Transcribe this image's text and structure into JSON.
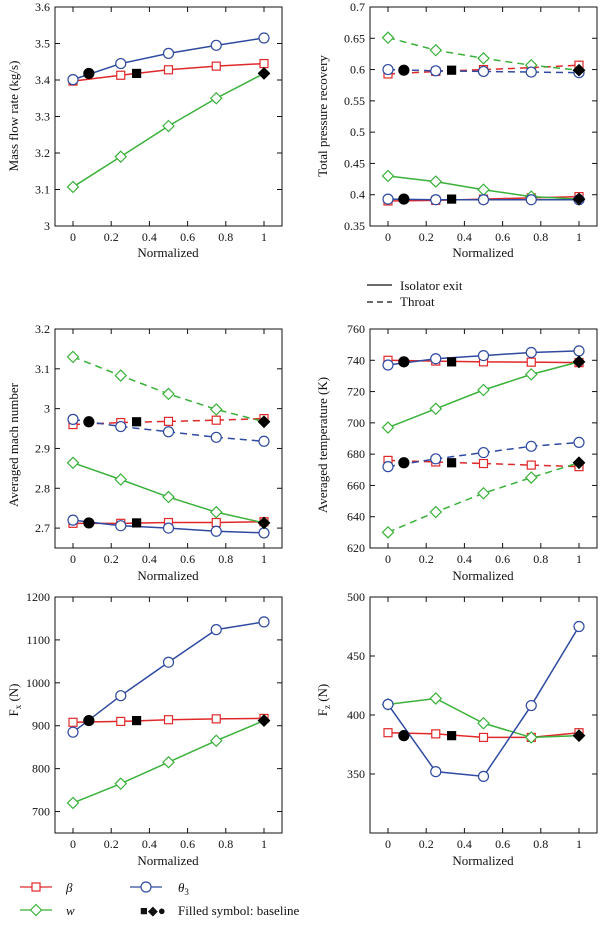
{
  "colors": {
    "beta": "#e0282a",
    "w": "#3ab13a",
    "theta": "#2f4aa0",
    "axis": "#111111"
  },
  "chart_data": [
    {
      "id": "mass",
      "type": "line",
      "xlabel": "Normalized",
      "ylabel": "Mass flow rate (kg/s)",
      "xlim": [
        0,
        1
      ],
      "ylim": [
        3.0,
        3.6
      ],
      "xticks": [
        0,
        0.2,
        0.4,
        0.6,
        0.8,
        1
      ],
      "xtick_labels": [
        "0",
        "0.2",
        "0.4",
        "0.6",
        "0.8",
        "1"
      ],
      "yticks": [
        3,
        3.1,
        3.2,
        3.3,
        3.4,
        3.5,
        3.6
      ],
      "ytick_labels": [
        "3",
        "3.1",
        "3.2",
        "3.3",
        "3.4",
        "3.5",
        "3.6"
      ],
      "series": [
        {
          "param": "beta",
          "style": "solid",
          "x": [
            0,
            0.25,
            0.5,
            0.75,
            1
          ],
          "y": [
            3.397,
            3.413,
            3.428,
            3.438,
            3.445
          ],
          "baseline": [
            0.333,
            3.418
          ]
        },
        {
          "param": "w",
          "style": "solid",
          "x": [
            0,
            0.25,
            0.5,
            0.75,
            1
          ],
          "y": [
            3.107,
            3.19,
            3.274,
            3.35,
            3.418
          ],
          "baseline": [
            1,
            3.418
          ]
        },
        {
          "param": "theta",
          "style": "solid",
          "x": [
            0,
            0.25,
            0.5,
            0.75,
            1
          ],
          "y": [
            3.401,
            3.445,
            3.473,
            3.495,
            3.515
          ],
          "baseline": [
            0.083,
            3.418
          ]
        }
      ]
    },
    {
      "id": "pressure",
      "type": "line",
      "xlabel": "Normalized",
      "ylabel": "Total pressure recovery",
      "xlim": [
        0,
        1
      ],
      "ylim": [
        0.35,
        0.7
      ],
      "xticks": [
        0,
        0.2,
        0.4,
        0.6,
        0.8,
        1
      ],
      "xtick_labels": [
        "0",
        "0.2",
        "0.4",
        "0.6",
        "0.8",
        "1"
      ],
      "yticks": [
        0.35,
        0.4,
        0.45,
        0.5,
        0.55,
        0.6,
        0.65,
        0.7
      ],
      "ytick_labels": [
        "0.35",
        "0.4",
        "0.45",
        "0.5",
        "0.55",
        "0.6",
        "0.65",
        "0.7"
      ],
      "series": [
        {
          "param": "beta",
          "style": "solid",
          "x": [
            0,
            0.25,
            0.5,
            0.75,
            1
          ],
          "y": [
            0.39,
            0.391,
            0.393,
            0.395,
            0.397
          ],
          "baseline": [
            0.333,
            0.393
          ]
        },
        {
          "param": "w",
          "style": "solid",
          "x": [
            0,
            0.25,
            0.5,
            0.75,
            1
          ],
          "y": [
            0.43,
            0.421,
            0.408,
            0.397,
            0.393
          ],
          "baseline": [
            1,
            0.393
          ]
        },
        {
          "param": "theta",
          "style": "solid",
          "x": [
            0,
            0.25,
            0.5,
            0.75,
            1
          ],
          "y": [
            0.393,
            0.392,
            0.392,
            0.392,
            0.392
          ],
          "baseline": [
            0.083,
            0.393
          ]
        },
        {
          "param": "beta",
          "style": "dashed",
          "x": [
            0,
            0.25,
            0.5,
            0.75,
            1
          ],
          "y": [
            0.593,
            0.597,
            0.6,
            0.603,
            0.607
          ],
          "baseline": [
            0.333,
            0.599
          ]
        },
        {
          "param": "w",
          "style": "dashed",
          "x": [
            0,
            0.25,
            0.5,
            0.75,
            1
          ],
          "y": [
            0.651,
            0.631,
            0.618,
            0.607,
            0.599
          ],
          "baseline": [
            1,
            0.599
          ]
        },
        {
          "param": "theta",
          "style": "dashed",
          "x": [
            0,
            0.25,
            0.5,
            0.75,
            1
          ],
          "y": [
            0.6,
            0.598,
            0.597,
            0.596,
            0.595
          ],
          "baseline": [
            0.083,
            0.599
          ]
        }
      ]
    },
    {
      "id": "mach",
      "type": "line",
      "xlabel": "Normalized",
      "ylabel": "Averaged mach number",
      "xlim": [
        0,
        1
      ],
      "ylim": [
        2.65,
        3.2
      ],
      "xticks": [
        0,
        0.2,
        0.4,
        0.6,
        0.8,
        1
      ],
      "xtick_labels": [
        "0",
        "0.2",
        "0.4",
        "0.6",
        "0.8",
        "1"
      ],
      "yticks": [
        2.7,
        2.8,
        2.9,
        3.0,
        3.1,
        3.2
      ],
      "ytick_labels": [
        "2.7",
        "2.8",
        "2.9",
        "3",
        "3.1",
        "3.2"
      ],
      "series": [
        {
          "param": "beta",
          "style": "solid",
          "x": [
            0,
            0.25,
            0.5,
            0.75,
            1
          ],
          "y": [
            2.712,
            2.712,
            2.714,
            2.714,
            2.716
          ],
          "baseline": [
            0.333,
            2.713
          ]
        },
        {
          "param": "w",
          "style": "solid",
          "x": [
            0,
            0.25,
            0.5,
            0.75,
            1
          ],
          "y": [
            2.864,
            2.822,
            2.778,
            2.74,
            2.713
          ],
          "baseline": [
            1,
            2.713
          ]
        },
        {
          "param": "theta",
          "style": "solid",
          "x": [
            0,
            0.25,
            0.5,
            0.75,
            1
          ],
          "y": [
            2.72,
            2.706,
            2.7,
            2.692,
            2.688
          ],
          "baseline": [
            0.083,
            2.713
          ]
        },
        {
          "param": "beta",
          "style": "dashed",
          "x": [
            0,
            0.25,
            0.5,
            0.75,
            1
          ],
          "y": [
            2.96,
            2.965,
            2.968,
            2.971,
            2.975
          ],
          "baseline": [
            0.333,
            2.967
          ]
        },
        {
          "param": "w",
          "style": "dashed",
          "x": [
            0,
            0.25,
            0.5,
            0.75,
            1
          ],
          "y": [
            3.13,
            3.083,
            3.037,
            2.998,
            2.967
          ],
          "baseline": [
            1,
            2.967
          ]
        },
        {
          "param": "theta",
          "style": "dashed",
          "x": [
            0,
            0.25,
            0.5,
            0.75,
            1
          ],
          "y": [
            2.973,
            2.955,
            2.942,
            2.928,
            2.918
          ],
          "baseline": [
            0.083,
            2.967
          ]
        }
      ]
    },
    {
      "id": "temperature",
      "type": "line",
      "xlabel": "Normalized",
      "ylabel": "Averaged temperature (K)",
      "xlim": [
        0,
        1
      ],
      "ylim": [
        620,
        760
      ],
      "xticks": [
        0,
        0.2,
        0.4,
        0.6,
        0.8,
        1
      ],
      "xtick_labels": [
        "0",
        "0.2",
        "0.4",
        "0.6",
        "0.8",
        "1"
      ],
      "yticks": [
        620,
        640,
        660,
        680,
        700,
        720,
        740,
        760
      ],
      "ytick_labels": [
        "620",
        "640",
        "660",
        "680",
        "700",
        "720",
        "740",
        "760"
      ],
      "series": [
        {
          "param": "beta",
          "style": "solid",
          "x": [
            0,
            0.25,
            0.5,
            0.75,
            1
          ],
          "y": [
            740,
            739.5,
            739,
            738.8,
            738.5
          ],
          "baseline": [
            0.333,
            739
          ]
        },
        {
          "param": "w",
          "style": "solid",
          "x": [
            0,
            0.25,
            0.5,
            0.75,
            1
          ],
          "y": [
            697,
            709,
            721,
            731,
            739
          ],
          "baseline": [
            1,
            739
          ]
        },
        {
          "param": "theta",
          "style": "solid",
          "x": [
            0,
            0.25,
            0.5,
            0.75,
            1
          ],
          "y": [
            737,
            741,
            743,
            745,
            746
          ],
          "baseline": [
            0.083,
            739
          ]
        },
        {
          "param": "beta",
          "style": "dashed",
          "x": [
            0,
            0.25,
            0.5,
            0.75,
            1
          ],
          "y": [
            676,
            675,
            674,
            673,
            672
          ],
          "baseline": [
            0.333,
            674.5
          ]
        },
        {
          "param": "w",
          "style": "dashed",
          "x": [
            0,
            0.25,
            0.5,
            0.75,
            1
          ],
          "y": [
            630,
            643,
            655,
            665,
            674.5
          ],
          "baseline": [
            1,
            674.5
          ]
        },
        {
          "param": "theta",
          "style": "dashed",
          "x": [
            0,
            0.25,
            0.5,
            0.75,
            1
          ],
          "y": [
            672,
            677,
            681,
            685,
            687.5
          ],
          "baseline": [
            0.083,
            674.5
          ]
        }
      ]
    },
    {
      "id": "fx",
      "type": "line",
      "xlabel": "Normalized",
      "ylabel": "Fx (N)",
      "ylabel_main": "F",
      "ylabel_sub": "x",
      "ylabel_tail": " (N)",
      "xlim": [
        0,
        1
      ],
      "ylim": [
        650,
        1200
      ],
      "xticks": [
        0,
        0.2,
        0.4,
        0.6,
        0.8,
        1
      ],
      "xtick_labels": [
        "0",
        "0.2",
        "0.4",
        "0.6",
        "0.8",
        "1"
      ],
      "yticks": [
        700,
        800,
        900,
        1000,
        1100,
        1200
      ],
      "ytick_labels": [
        "700",
        "800",
        "900",
        "1000",
        "1100",
        "1200"
      ],
      "series": [
        {
          "param": "beta",
          "style": "solid",
          "x": [
            0,
            0.25,
            0.5,
            0.75,
            1
          ],
          "y": [
            908,
            910,
            914,
            916,
            917
          ],
          "baseline": [
            0.333,
            912
          ]
        },
        {
          "param": "w",
          "style": "solid",
          "x": [
            0,
            0.25,
            0.5,
            0.75,
            1
          ],
          "y": [
            720,
            765,
            815,
            865,
            912
          ],
          "baseline": [
            1,
            912
          ]
        },
        {
          "param": "theta",
          "style": "solid",
          "x": [
            0,
            0.25,
            0.5,
            0.75,
            1
          ],
          "y": [
            885,
            970,
            1048,
            1124,
            1142
          ],
          "baseline": [
            0.083,
            912
          ]
        }
      ]
    },
    {
      "id": "fz",
      "type": "line",
      "xlabel": "Normalized",
      "ylabel": "Fz (N)",
      "ylabel_main": "F",
      "ylabel_sub": "z",
      "ylabel_tail": " (N)",
      "xlim": [
        0,
        1
      ],
      "ylim": [
        300,
        500
      ],
      "xticks": [
        0,
        0.2,
        0.4,
        0.6,
        0.8,
        1
      ],
      "xtick_labels": [
        "0",
        "0.2",
        "0.4",
        "0.6",
        "0.8",
        "1"
      ],
      "yticks": [
        350,
        400,
        450,
        500
      ],
      "ytick_labels": [
        "350",
        "400",
        "450",
        "500"
      ],
      "series": [
        {
          "param": "beta",
          "style": "solid",
          "x": [
            0,
            0.25,
            0.5,
            0.75,
            1
          ],
          "y": [
            385,
            384,
            381,
            381,
            385
          ],
          "baseline": [
            0.333,
            382.5
          ]
        },
        {
          "param": "w",
          "style": "solid",
          "x": [
            0,
            0.25,
            0.5,
            0.75,
            1
          ],
          "y": [
            409,
            414,
            393,
            381,
            382.5
          ],
          "baseline": [
            1,
            382.5
          ]
        },
        {
          "param": "theta",
          "style": "solid",
          "x": [
            0,
            0.25,
            0.5,
            0.75,
            1
          ],
          "y": [
            409,
            352,
            348,
            408,
            475
          ],
          "baseline": [
            0.083,
            382.5
          ]
        }
      ]
    }
  ],
  "line_legend": {
    "solid": "Isolator exit",
    "dashed": "Throat"
  },
  "legend": {
    "beta": "β",
    "w": "w",
    "theta_main": "θ",
    "theta_sub": "3",
    "baseline_symbols": "■◆●",
    "baseline_text": " Filled symbol: baseline"
  }
}
